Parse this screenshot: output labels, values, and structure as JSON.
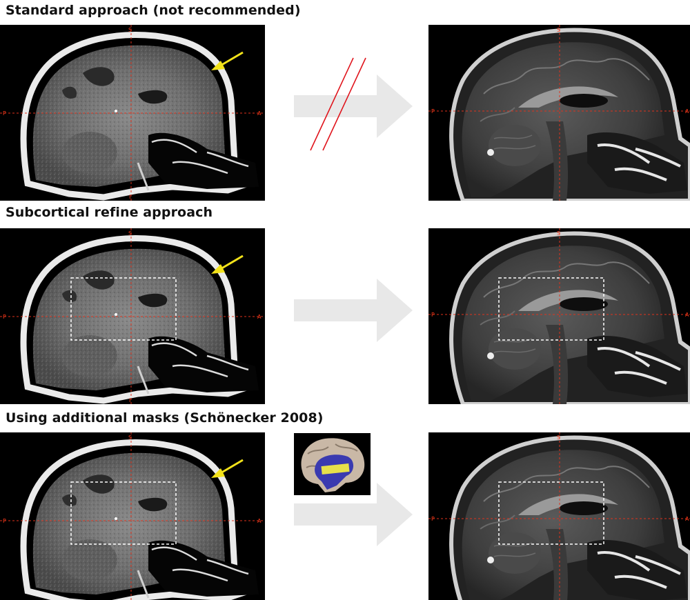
{
  "rows": [
    {
      "title": "Standard approach (not recommended)"
    },
    {
      "title": "Subcortical refine approach"
    },
    {
      "title": "Using additional masks (Schönecker 2008)"
    }
  ],
  "orientation_labels": {
    "superior": "S",
    "inferior": "I",
    "posterior": "P",
    "anterior": "A"
  },
  "colors": {
    "crosshair": "#e0321c",
    "pointer_arrow": "#f2e21a",
    "flow_arrow": "#e8e8e8",
    "forbidden_strike": "#e0141c",
    "refine_box": "#ffffff",
    "mask_region": "#3a3ab0",
    "mask_highlight": "#e6e04a"
  },
  "icons": {
    "flow_arrow": "arrow-right-icon",
    "not_equal": "double-slash-icon",
    "pointer": "yellow-pointer-arrow-icon"
  }
}
